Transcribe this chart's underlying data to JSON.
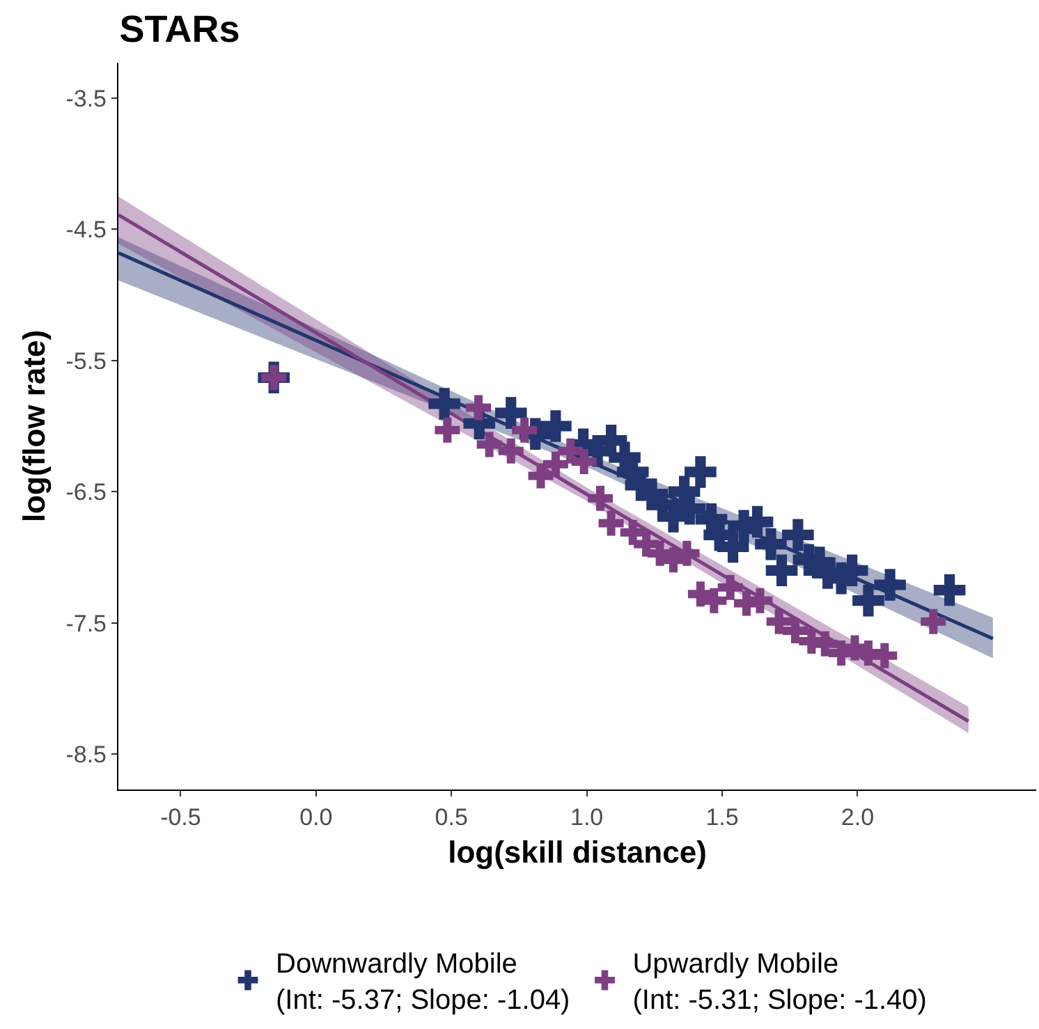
{
  "chart_data": {
    "type": "scatter",
    "title": "STARs",
    "xlabel": "log(skill distance)",
    "ylabel": "log(flow rate)",
    "xlim": [
      -0.73,
      2.66
    ],
    "ylim": [
      -8.77,
      -3.23
    ],
    "xticks": [
      -0.5,
      {
        "value": 0,
        "label": "0.0"
      },
      0.5,
      {
        "value": 1,
        "label": "1.0"
      },
      1.5,
      {
        "value": 2,
        "label": "2.0"
      }
    ],
    "yticks": [
      -3.5,
      -4.5,
      -5.5,
      -6.5,
      -7.5,
      -8.5
    ],
    "grid": false,
    "legend": "bottom",
    "marker": "cross",
    "series": [
      {
        "type": "line",
        "marker": "none",
        "color": "#22356e",
        "x": [
          -0.73,
          1.0,
          2.5
        ],
        "values": [
          -4.68,
          -6.26,
          -7.62
        ],
        "lower": [
          -4.89,
          -6.31,
          -7.77
        ],
        "upper": [
          -4.56,
          -6.21,
          -7.46
        ]
      },
      {
        "type": "line",
        "marker": "none",
        "color": "#7d3f82",
        "x": [
          -0.73,
          1.0,
          2.41
        ],
        "values": [
          -4.39,
          -6.52,
          -8.25
        ],
        "lower": [
          -4.61,
          -6.57,
          -8.34
        ],
        "upper": [
          -4.25,
          -6.47,
          -8.14
        ]
      },
      {
        "name": "Downwardly Mobile\n(Int: -5.37; Slope: -1.04)",
        "color": "#22356e",
        "x": [
          -0.156,
          0.474,
          0.603,
          0.72,
          0.81,
          0.885,
          0.987,
          1.04,
          1.09,
          1.14,
          1.17,
          1.2,
          1.24,
          1.28,
          1.32,
          1.36,
          1.38,
          1.42,
          1.46,
          1.49,
          1.54,
          1.58,
          1.63,
          1.68,
          1.72,
          1.78,
          1.82,
          1.86,
          1.89,
          1.94,
          1.98,
          2.04,
          2.12,
          2.34
        ],
        "values": [
          -5.63,
          -5.83,
          -5.98,
          -5.9,
          -6.06,
          -6.0,
          -6.14,
          -6.19,
          -6.11,
          -6.24,
          -6.35,
          -6.45,
          -6.52,
          -6.6,
          -6.69,
          -6.5,
          -6.63,
          -6.35,
          -6.71,
          -6.83,
          -6.92,
          -6.76,
          -6.73,
          -6.9,
          -7.1,
          -6.83,
          -7.02,
          -7.04,
          -7.12,
          -7.16,
          -7.1,
          -7.33,
          -7.21,
          -7.25
        ]
      },
      {
        "name": "Upwardly Mobile\n(Int: -5.31; Slope: -1.40)",
        "color": "#7d3f82",
        "x": [
          -0.156,
          0.485,
          0.6,
          0.64,
          0.72,
          0.77,
          0.83,
          0.885,
          0.94,
          0.99,
          1.05,
          1.09,
          1.17,
          1.22,
          1.27,
          1.32,
          1.37,
          1.42,
          1.47,
          1.53,
          1.59,
          1.64,
          1.71,
          1.77,
          1.83,
          1.88,
          1.94,
          1.99,
          2.04,
          2.1,
          2.28
        ],
        "values": [
          -5.63,
          -6.03,
          -5.86,
          -6.14,
          -6.19,
          -6.03,
          -6.38,
          -6.29,
          -6.19,
          -6.27,
          -6.55,
          -6.74,
          -6.81,
          -6.9,
          -6.97,
          -7.02,
          -6.97,
          -7.28,
          -7.33,
          -7.23,
          -7.35,
          -7.33,
          -7.49,
          -7.56,
          -7.64,
          -7.66,
          -7.73,
          -7.69,
          -7.73,
          -7.75,
          -7.49
        ]
      }
    ]
  }
}
